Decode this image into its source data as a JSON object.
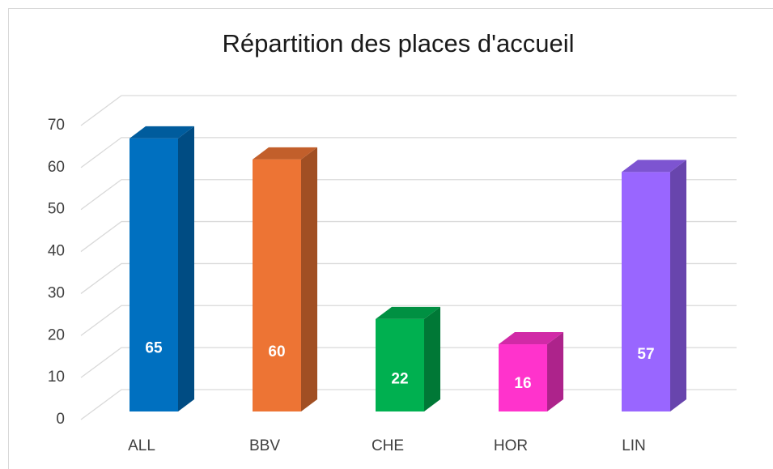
{
  "chart_data": {
    "type": "bar3d",
    "title": "Répartition des places d'accueil",
    "categories": [
      "ALL",
      "BBV",
      "CHE",
      "HOR",
      "LIN"
    ],
    "values": [
      65,
      60,
      22,
      16,
      57
    ],
    "colors": [
      "#0070c0",
      "#ed7434",
      "#00b050",
      "#ff33cc",
      "#9966ff"
    ],
    "ylim": [
      0,
      70
    ],
    "yticks": [
      0,
      10,
      20,
      30,
      40,
      50,
      60,
      70
    ],
    "grid": true
  }
}
